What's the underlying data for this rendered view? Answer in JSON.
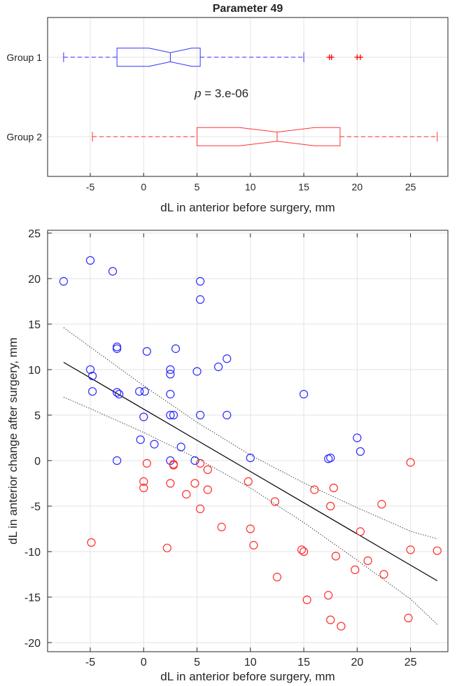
{
  "chart_data": [
    {
      "type": "boxplot",
      "title": "Parameter 49",
      "xlabel": "dL in anterior before surgery, mm",
      "xlim": [
        -9,
        28.5
      ],
      "xticks": [
        -5,
        0,
        5,
        10,
        15,
        20,
        25
      ],
      "grid": true,
      "annotation": {
        "italic": "p",
        "rest": " = 3.e-06"
      },
      "groups": [
        {
          "name": "Group 1",
          "color": "#0000ff",
          "whisker_low": -7.5,
          "q1": -2.5,
          "median": 2.5,
          "q3": 5.3,
          "notch_low": 0.5,
          "notch_high": 4.5,
          "whisker_high": 15,
          "outliers": [
            17.4,
            17.6,
            20.0,
            20.3
          ]
        },
        {
          "name": "Group 2",
          "color": "#ff0000",
          "whisker_low": -4.8,
          "q1": 5,
          "median": 12.5,
          "q3": 18.4,
          "notch_low": 9,
          "notch_high": 16,
          "whisker_high": 27.5,
          "outliers": []
        }
      ]
    },
    {
      "type": "scatter",
      "xlabel": "dL in anterior before surgery, mm",
      "ylabel": "dL in anterior change after surgery, mm",
      "xlim": [
        -9,
        28.5
      ],
      "ylim": [
        -21,
        25
      ],
      "xticks": [
        -5,
        0,
        5,
        10,
        15,
        20,
        25
      ],
      "yticks": [
        25,
        20,
        15,
        10,
        5,
        0,
        -5,
        -10,
        -15,
        -20
      ],
      "grid": true,
      "series": [
        {
          "name": "Group 1",
          "color": "#0000ff",
          "points": [
            [
              -7.5,
              19.7
            ],
            [
              -5,
              22
            ],
            [
              -2.9,
              20.8
            ],
            [
              5.3,
              19.7
            ],
            [
              5.3,
              17.7
            ],
            [
              -2.5,
              12.5
            ],
            [
              -2.5,
              12.3
            ],
            [
              3,
              12.3
            ],
            [
              -5,
              10
            ],
            [
              -4.8,
              9.3
            ],
            [
              0.3,
              12
            ],
            [
              2.5,
              10
            ],
            [
              2.5,
              9.5
            ],
            [
              5,
              9.8
            ],
            [
              7,
              10.3
            ],
            [
              7.8,
              11.2
            ],
            [
              -4.8,
              7.6
            ],
            [
              -2.5,
              7.5
            ],
            [
              -2.3,
              7.3
            ],
            [
              -0.4,
              7.6
            ],
            [
              0.1,
              7.6
            ],
            [
              2.5,
              7.3
            ],
            [
              2.5,
              5
            ],
            [
              2.8,
              5
            ],
            [
              5.3,
              5
            ],
            [
              7.8,
              5
            ],
            [
              0,
              4.8
            ],
            [
              15,
              7.3
            ],
            [
              -0.3,
              2.3
            ],
            [
              1,
              1.8
            ],
            [
              3.5,
              1.5
            ],
            [
              10,
              0.3
            ],
            [
              -2.5,
              0
            ],
            [
              2.5,
              0
            ],
            [
              4.8,
              0
            ],
            [
              17.3,
              0.2
            ],
            [
              17.5,
              0.3
            ],
            [
              20,
              2.5
            ],
            [
              20.3,
              1
            ]
          ]
        },
        {
          "name": "Group 2",
          "color": "#ff0000",
          "points": [
            [
              -4.9,
              -9
            ],
            [
              0.3,
              -0.3
            ],
            [
              0,
              -2.3
            ],
            [
              0,
              -3
            ],
            [
              2.5,
              -2.5
            ],
            [
              2.8,
              -0.4
            ],
            [
              2.8,
              -0.5
            ],
            [
              2.2,
              -9.6
            ],
            [
              4,
              -3.7
            ],
            [
              4.8,
              -2.5
            ],
            [
              5.3,
              -0.3
            ],
            [
              6,
              -1
            ],
            [
              6,
              -3.2
            ],
            [
              5.3,
              -5.3
            ],
            [
              7.3,
              -7.3
            ],
            [
              9.8,
              -2.3
            ],
            [
              10,
              -7.5
            ],
            [
              10.3,
              -9.3
            ],
            [
              12.3,
              -4.5
            ],
            [
              12.5,
              -12.8
            ],
            [
              14.8,
              -9.8
            ],
            [
              15,
              -10
            ],
            [
              15.3,
              -15.3
            ],
            [
              16,
              -3.2
            ],
            [
              17.5,
              -5
            ],
            [
              17.8,
              -3
            ],
            [
              17.3,
              -14.8
            ],
            [
              17.5,
              -17.5
            ],
            [
              18,
              -10.5
            ],
            [
              18.5,
              -18.2
            ],
            [
              19.8,
              -12
            ],
            [
              20.3,
              -7.8
            ],
            [
              21,
              -11
            ],
            [
              22.3,
              -4.8
            ],
            [
              22.5,
              -12.5
            ],
            [
              25,
              -0.2
            ],
            [
              25,
              -9.8
            ],
            [
              24.8,
              -17.3
            ],
            [
              27.5,
              -9.9
            ]
          ]
        }
      ],
      "fit": {
        "x": [
          -7.5,
          -5,
          0,
          5,
          10,
          15,
          20,
          25,
          27.5
        ],
        "line": [
          10.8,
          9.09,
          5.66,
          2.23,
          -1.2,
          -4.63,
          -8.06,
          -11.49,
          -13.2
        ],
        "ci_upper": [
          14.62,
          12.47,
          8.23,
          4.21,
          0.61,
          -2.45,
          -5.18,
          -7.76,
          -8.6
        ],
        "ci_lower": [
          6.98,
          5.71,
          3.09,
          0.25,
          -3.01,
          -6.81,
          -10.94,
          -15.22,
          -18.0
        ]
      }
    }
  ]
}
